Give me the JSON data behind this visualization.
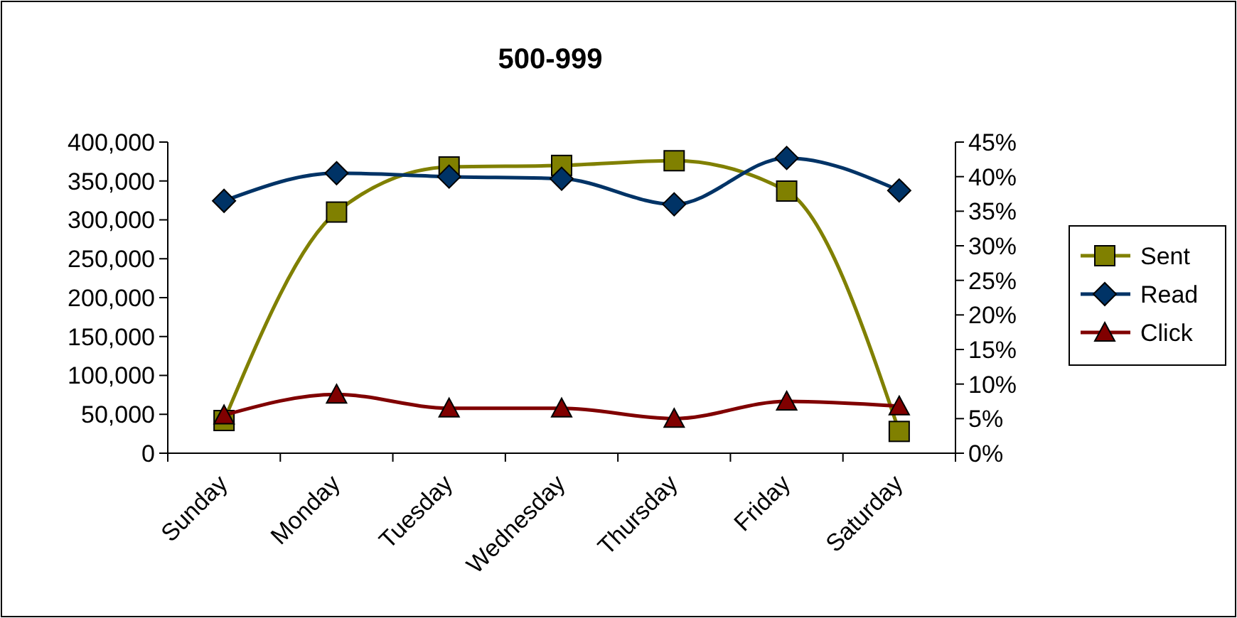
{
  "chart_data": {
    "type": "line",
    "title": "500-999",
    "categories": [
      "Sunday",
      "Monday",
      "Tuesday",
      "Wednesday",
      "Thursday",
      "Friday",
      "Saturday"
    ],
    "series": [
      {
        "name": "Sent",
        "color": "#808000",
        "marker": "square",
        "values": [
          42000,
          310000,
          368000,
          370000,
          376000,
          337000,
          28000
        ]
      },
      {
        "name": "Read",
        "color": "#003366",
        "marker": "diamond",
        "axis": "y2",
        "values": [
          36.5,
          40.5,
          40,
          39.7,
          36,
          42.7,
          38
        ]
      },
      {
        "name": "Click",
        "color": "#800000",
        "marker": "triangle",
        "axis": "y2",
        "values": [
          5.5,
          8.5,
          6.5,
          6.5,
          5,
          7.5,
          6.8
        ]
      }
    ],
    "ylim": [
      0,
      400000
    ],
    "yticks": [
      {
        "value": 0,
        "label": "0"
      },
      {
        "value": 50000,
        "label": "50,000"
      },
      {
        "value": 100000,
        "label": "100,000"
      },
      {
        "value": 150000,
        "label": "150,000"
      },
      {
        "value": 200000,
        "label": "200,000"
      },
      {
        "value": 250000,
        "label": "250,000"
      },
      {
        "value": 300000,
        "label": "300,000"
      },
      {
        "value": 350000,
        "label": "350,000"
      },
      {
        "value": 400000,
        "label": "400,000"
      }
    ],
    "y2lim": [
      0,
      45
    ],
    "y2ticks": [
      {
        "value": 0,
        "label": "0%"
      },
      {
        "value": 5,
        "label": "5%"
      },
      {
        "value": 10,
        "label": "10%"
      },
      {
        "value": 15,
        "label": "15%"
      },
      {
        "value": 20,
        "label": "20%"
      },
      {
        "value": 25,
        "label": "25%"
      },
      {
        "value": 30,
        "label": "30%"
      },
      {
        "value": 35,
        "label": "35%"
      },
      {
        "value": 40,
        "label": "40%"
      },
      {
        "value": 45,
        "label": "45%"
      }
    ],
    "legend": "right",
    "line_style": "solid"
  }
}
